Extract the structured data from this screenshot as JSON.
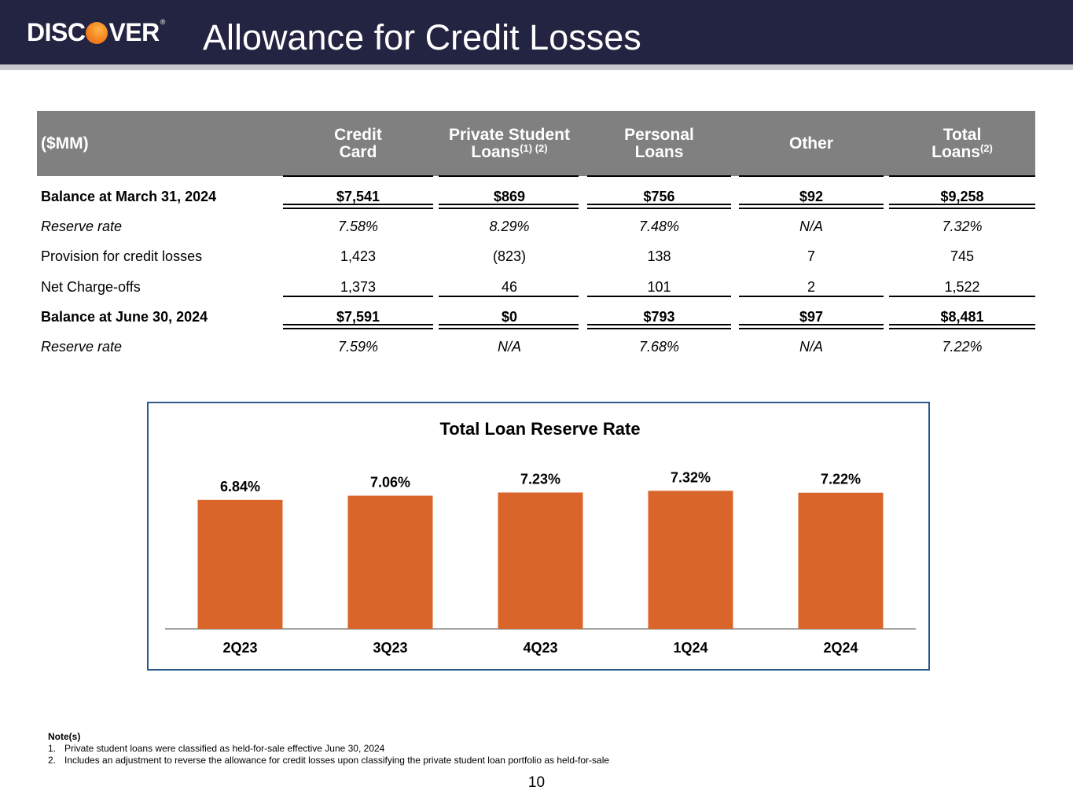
{
  "header": {
    "logo_text_left": "DISC",
    "logo_text_right": "VER",
    "logo_reg": "®",
    "title": "Allowance for Credit Losses"
  },
  "table": {
    "columns": [
      "($MM)",
      "Credit Card",
      "Private Student Loans",
      "Personal Loans",
      "Other",
      "Total Loans"
    ],
    "col_headers": {
      "mm": "($MM)",
      "credit_l1": "Credit",
      "credit_l2": "Card",
      "pvt_l1": "Private Student",
      "pvt_l2": "Loans",
      "pvt_sup": "(1) (2)",
      "pers_l1": "Personal",
      "pers_l2": "Loans",
      "other": "Other",
      "total_l1": "Total",
      "total_l2": "Loans",
      "total_sup": "(2)"
    },
    "rows": [
      {
        "label": "Balance at March 31, 2024",
        "values": [
          "$7,541",
          "$869",
          "$756",
          "$92",
          "$9,258"
        ]
      },
      {
        "label": "Reserve rate",
        "values": [
          "7.58%",
          "8.29%",
          "7.48%",
          "N/A",
          "7.32%"
        ]
      },
      {
        "label": "Provision for credit losses",
        "values": [
          "1,423",
          "(823)",
          "138",
          "7",
          "745"
        ]
      },
      {
        "label": "Net Charge-offs",
        "values": [
          "1,373",
          "46",
          "101",
          "2",
          "1,522"
        ]
      },
      {
        "label": "Balance at June 30, 2024",
        "values": [
          "$7,591",
          "$0",
          "$793",
          "$97",
          "$8,481"
        ]
      },
      {
        "label": "Reserve rate",
        "values": [
          "7.59%",
          "N/A",
          "7.68%",
          "N/A",
          "7.22%"
        ]
      }
    ]
  },
  "chart_data": {
    "type": "bar",
    "title": "Total Loan Reserve Rate",
    "categories": [
      "2Q23",
      "3Q23",
      "4Q23",
      "1Q24",
      "2Q24"
    ],
    "values": [
      6.84,
      7.06,
      7.23,
      7.32,
      7.22
    ],
    "labels": [
      "6.84%",
      "7.06%",
      "7.23%",
      "7.32%",
      "7.22%"
    ],
    "ylim": [
      0,
      8.0
    ],
    "xlabel": "",
    "ylabel": "",
    "color": "#d9652a"
  },
  "notes": {
    "heading": "Note(s)",
    "items": [
      {
        "num": "1.",
        "text": "Private student loans were classified as held-for-sale effective June 30, 2024"
      },
      {
        "num": "2.",
        "text": "Includes an adjustment to reverse the allowance for credit losses upon classifying the private student loan portfolio as held-for-sale"
      }
    ]
  },
  "page_number": "10"
}
